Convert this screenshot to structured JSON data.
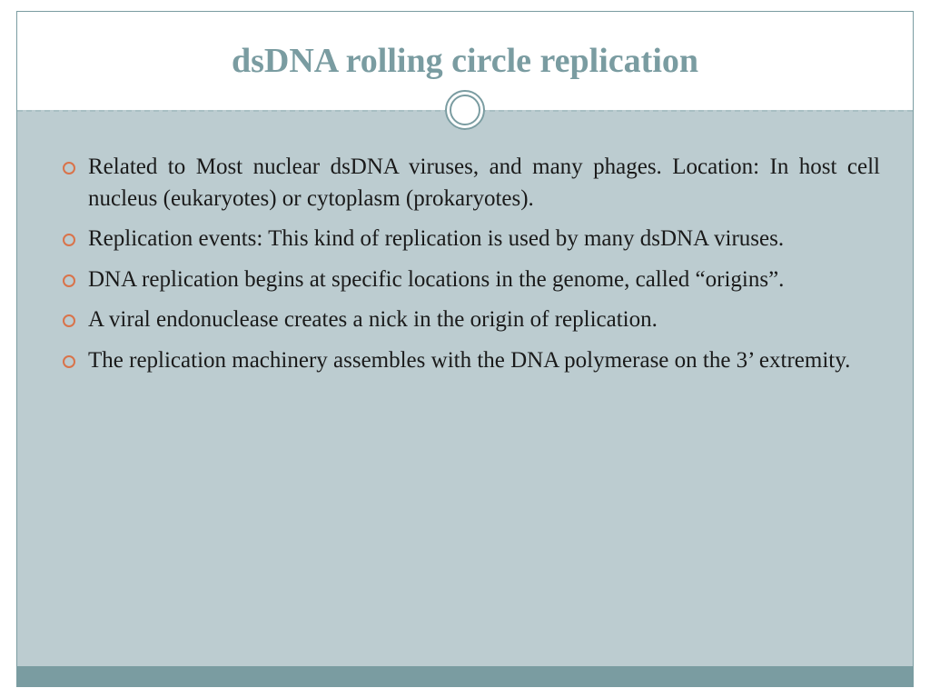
{
  "slide": {
    "title": "dsDNA rolling circle replication",
    "bullets": [
      "Related to Most nuclear dsDNA viruses, and many phages. Location: In host cell nucleus (eukaryotes) or cytoplasm (prokaryotes).",
      "Replication events: This kind of replication is used by many dsDNA viruses.",
      "DNA replication begins at specific locations in the genome, called “origins”.",
      "A viral endonuclease creates a nick in the origin of replication.",
      "The replication machinery assembles with the DNA polymerase on the 3’ extremity."
    ]
  },
  "style": {
    "title_color": "#7a9ca1",
    "title_fontsize": 38,
    "body_background": "#bcccd0",
    "bullet_marker_color": "#d9734a",
    "bullet_text_color": "#1a1a1a",
    "bullet_fontsize": 25,
    "slide_border_color": "#7a9ca1",
    "divider_dash_color": "#a8bfc3",
    "footer_bar_color": "#7a9ca1",
    "page_background": "#ffffff"
  }
}
